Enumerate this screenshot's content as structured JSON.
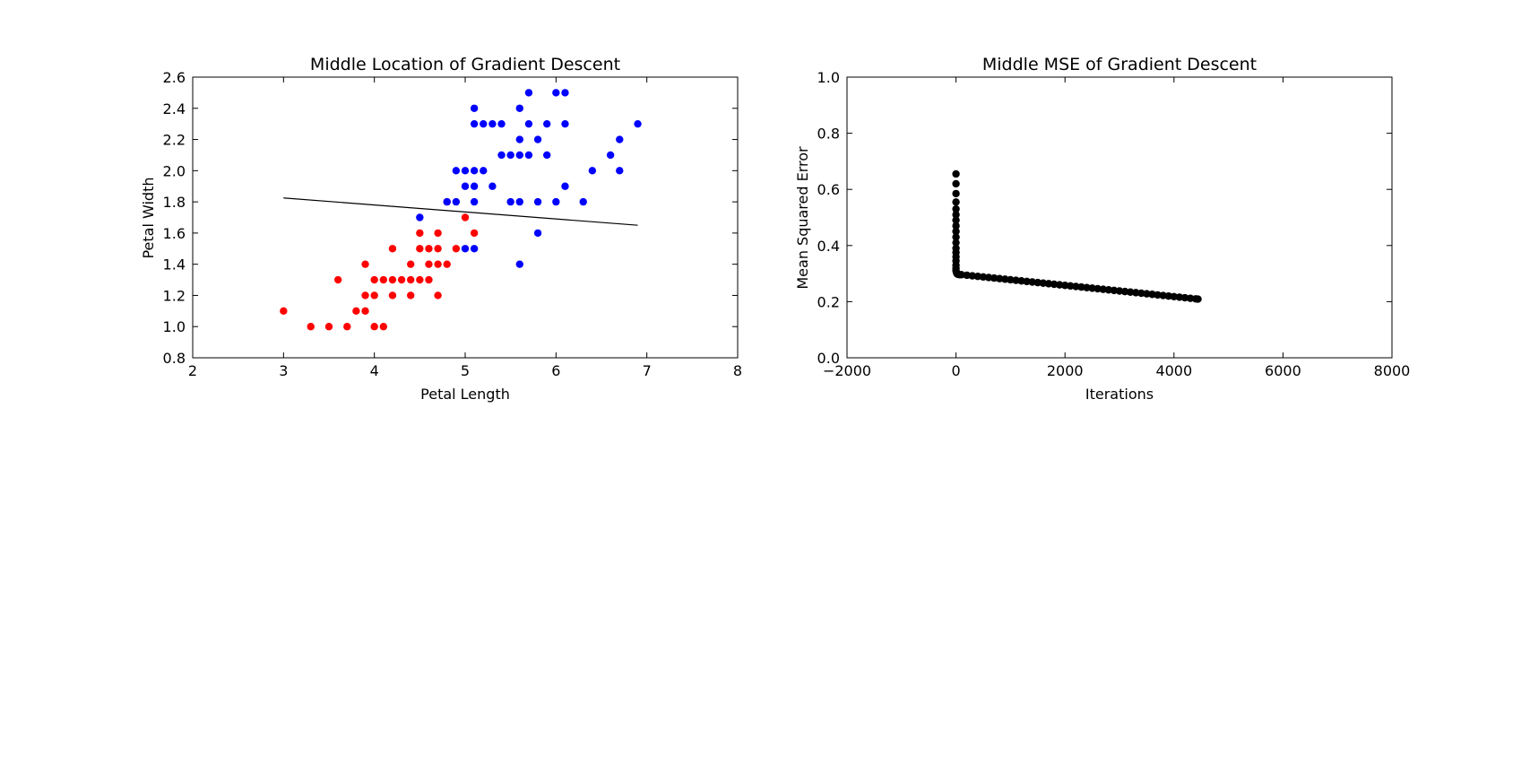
{
  "chart_data": [
    {
      "type": "scatter",
      "title": "Middle Location of Gradient Descent",
      "xlabel": "Petal Length",
      "ylabel": "Petal Width",
      "xlim": [
        2,
        8
      ],
      "ylim": [
        0.8,
        2.6
      ],
      "xticks": [
        "2",
        "3",
        "4",
        "5",
        "6",
        "7",
        "8"
      ],
      "yticks": [
        "0.8",
        "1.0",
        "1.2",
        "1.4",
        "1.6",
        "1.8",
        "2.0",
        "2.2",
        "2.4",
        "2.6"
      ],
      "grid": false,
      "series": [
        {
          "color": "#ff0000",
          "points": [
            [
              3.0,
              1.1
            ],
            [
              3.3,
              1.0
            ],
            [
              3.5,
              1.0
            ],
            [
              3.6,
              1.3
            ],
            [
              3.7,
              1.0
            ],
            [
              3.8,
              1.1
            ],
            [
              3.9,
              1.1
            ],
            [
              3.9,
              1.2
            ],
            [
              3.9,
              1.4
            ],
            [
              4.0,
              1.0
            ],
            [
              4.0,
              1.2
            ],
            [
              4.0,
              1.3
            ],
            [
              4.1,
              1.0
            ],
            [
              4.1,
              1.3
            ],
            [
              4.2,
              1.2
            ],
            [
              4.2,
              1.3
            ],
            [
              4.2,
              1.5
            ],
            [
              4.3,
              1.3
            ],
            [
              4.4,
              1.2
            ],
            [
              4.4,
              1.3
            ],
            [
              4.4,
              1.4
            ],
            [
              4.5,
              1.3
            ],
            [
              4.5,
              1.5
            ],
            [
              4.5,
              1.6
            ],
            [
              4.6,
              1.3
            ],
            [
              4.6,
              1.4
            ],
            [
              4.6,
              1.5
            ],
            [
              4.7,
              1.2
            ],
            [
              4.7,
              1.4
            ],
            [
              4.7,
              1.5
            ],
            [
              4.7,
              1.6
            ],
            [
              4.8,
              1.4
            ],
            [
              4.8,
              1.8
            ],
            [
              4.9,
              1.5
            ],
            [
              5.0,
              1.7
            ],
            [
              5.1,
              1.6
            ]
          ]
        },
        {
          "color": "#0000ff",
          "points": [
            [
              4.5,
              1.7
            ],
            [
              4.8,
              1.8
            ],
            [
              4.9,
              1.8
            ],
            [
              4.9,
              2.0
            ],
            [
              5.0,
              1.5
            ],
            [
              5.0,
              1.9
            ],
            [
              5.0,
              2.0
            ],
            [
              5.1,
              1.5
            ],
            [
              5.1,
              1.8
            ],
            [
              5.1,
              1.9
            ],
            [
              5.1,
              2.0
            ],
            [
              5.1,
              2.3
            ],
            [
              5.1,
              2.4
            ],
            [
              5.2,
              2.0
            ],
            [
              5.2,
              2.3
            ],
            [
              5.3,
              1.9
            ],
            [
              5.3,
              2.3
            ],
            [
              5.4,
              2.1
            ],
            [
              5.4,
              2.3
            ],
            [
              5.5,
              1.8
            ],
            [
              5.5,
              2.1
            ],
            [
              5.6,
              1.4
            ],
            [
              5.6,
              1.8
            ],
            [
              5.6,
              2.1
            ],
            [
              5.6,
              2.2
            ],
            [
              5.6,
              2.4
            ],
            [
              5.7,
              2.1
            ],
            [
              5.7,
              2.3
            ],
            [
              5.7,
              2.5
            ],
            [
              5.8,
              1.6
            ],
            [
              5.8,
              1.8
            ],
            [
              5.8,
              2.2
            ],
            [
              5.9,
              2.1
            ],
            [
              5.9,
              2.3
            ],
            [
              6.0,
              1.8
            ],
            [
              6.0,
              2.5
            ],
            [
              6.1,
              1.9
            ],
            [
              6.1,
              2.3
            ],
            [
              6.1,
              2.5
            ],
            [
              6.3,
              1.8
            ],
            [
              6.4,
              2.0
            ],
            [
              6.6,
              2.1
            ],
            [
              6.7,
              2.0
            ],
            [
              6.7,
              2.2
            ],
            [
              6.9,
              2.3
            ]
          ]
        }
      ],
      "line": {
        "color": "#000000",
        "points": [
          [
            3.0,
            1.825
          ],
          [
            6.9,
            1.65
          ]
        ]
      }
    },
    {
      "type": "scatter",
      "title": "Middle MSE of Gradient Descent",
      "xlabel": "Iterations",
      "ylabel": "Mean Squared Error",
      "xlim": [
        -2000,
        8000
      ],
      "ylim": [
        0.0,
        1.0
      ],
      "xticks": [
        "−2000",
        "0",
        "2000",
        "4000",
        "6000",
        "8000"
      ],
      "yticks": [
        "0.0",
        "0.2",
        "0.4",
        "0.6",
        "0.8",
        "1.0"
      ],
      "grid": false,
      "series": [
        {
          "color": "#000000",
          "points": [
            [
              0,
              0.655
            ],
            [
              0,
              0.62
            ],
            [
              0,
              0.585
            ],
            [
              0,
              0.555
            ],
            [
              0,
              0.53
            ],
            [
              0,
              0.51
            ],
            [
              0,
              0.49
            ],
            [
              0,
              0.47
            ],
            [
              0,
              0.45
            ],
            [
              0,
              0.43
            ],
            [
              0,
              0.41
            ],
            [
              0,
              0.39
            ],
            [
              0,
              0.375
            ],
            [
              0,
              0.36
            ],
            [
              0,
              0.345
            ],
            [
              0,
              0.33
            ],
            [
              0,
              0.318
            ],
            [
              0,
              0.31
            ],
            [
              10,
              0.303
            ],
            [
              20,
              0.299
            ],
            [
              40,
              0.297
            ],
            [
              70,
              0.296
            ],
            [
              100,
              0.296
            ],
            [
              200,
              0.294
            ],
            [
              300,
              0.292
            ],
            [
              400,
              0.29
            ],
            [
              500,
              0.288
            ],
            [
              600,
              0.286
            ],
            [
              700,
              0.284
            ],
            [
              800,
              0.282
            ],
            [
              900,
              0.28
            ],
            [
              1000,
              0.278
            ],
            [
              1100,
              0.276
            ],
            [
              1200,
              0.274
            ],
            [
              1300,
              0.272
            ],
            [
              1400,
              0.27
            ],
            [
              1500,
              0.268
            ],
            [
              1600,
              0.266
            ],
            [
              1700,
              0.264
            ],
            [
              1800,
              0.262
            ],
            [
              1900,
              0.26
            ],
            [
              2000,
              0.258
            ],
            [
              2100,
              0.256
            ],
            [
              2200,
              0.254
            ],
            [
              2300,
              0.252
            ],
            [
              2400,
              0.25
            ],
            [
              2500,
              0.248
            ],
            [
              2600,
              0.246
            ],
            [
              2700,
              0.244
            ],
            [
              2800,
              0.242
            ],
            [
              2900,
              0.24
            ],
            [
              3000,
              0.238
            ],
            [
              3100,
              0.236
            ],
            [
              3200,
              0.234
            ],
            [
              3300,
              0.232
            ],
            [
              3400,
              0.23
            ],
            [
              3500,
              0.228
            ],
            [
              3600,
              0.226
            ],
            [
              3700,
              0.224
            ],
            [
              3800,
              0.222
            ],
            [
              3900,
              0.22
            ],
            [
              4000,
              0.218
            ],
            [
              4100,
              0.216
            ],
            [
              4200,
              0.214
            ],
            [
              4300,
              0.212
            ],
            [
              4400,
              0.21
            ],
            [
              4440,
              0.209
            ]
          ]
        }
      ]
    }
  ]
}
